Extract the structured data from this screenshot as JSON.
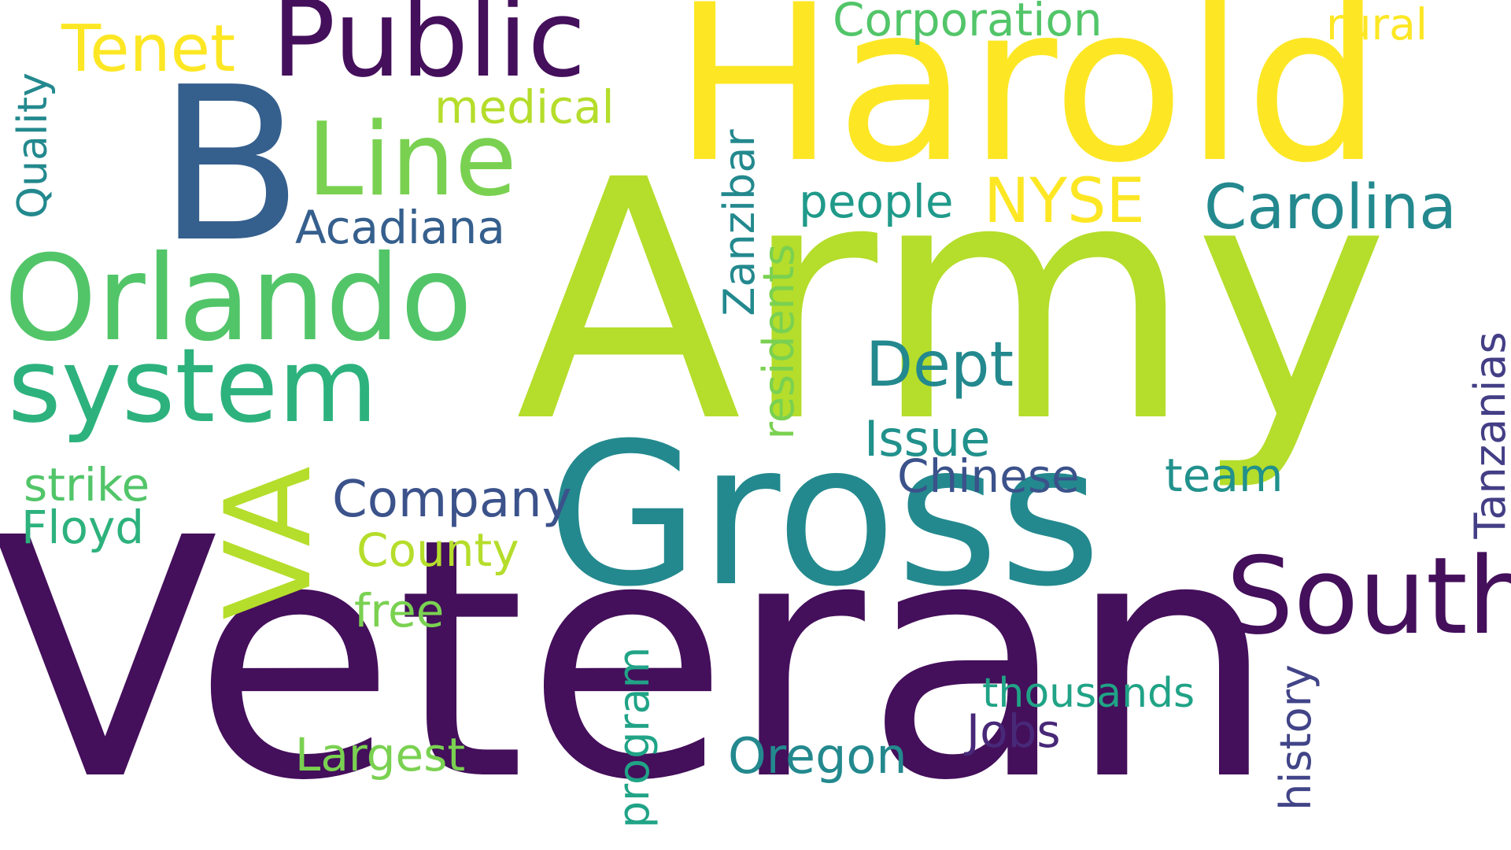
{
  "words": [
    {
      "text": "Veteran",
      "color": "#440f5b"
    },
    {
      "text": "Army",
      "color": "#b5dd2b"
    },
    {
      "text": "Harold",
      "color": "#fde725"
    },
    {
      "text": "Gross",
      "color": "#23898e"
    },
    {
      "text": "B",
      "color": "#355f8d"
    },
    {
      "text": "Public",
      "color": "#440f5b"
    },
    {
      "text": "Line",
      "color": "#7ad151"
    },
    {
      "text": "Orlando",
      "color": "#52c569"
    },
    {
      "text": "system",
      "color": "#2db27d"
    },
    {
      "text": "VA",
      "color": "#b5dd2b"
    },
    {
      "text": "South",
      "color": "#440f5b"
    },
    {
      "text": "Carolina",
      "color": "#23898e"
    },
    {
      "text": "Tenet",
      "color": "#fde725"
    },
    {
      "text": "Corporation",
      "color": "#52c569"
    },
    {
      "text": "rural",
      "color": "#fde725"
    },
    {
      "text": "medical",
      "color": "#b5dd2b"
    },
    {
      "text": "NYSE",
      "color": "#fde725"
    },
    {
      "text": "people",
      "color": "#1f9a8a"
    },
    {
      "text": "Acadiana",
      "color": "#355f8d"
    },
    {
      "text": "Dept",
      "color": "#23898e"
    },
    {
      "text": "Issue",
      "color": "#21918c"
    },
    {
      "text": "Chinese",
      "color": "#3b528b"
    },
    {
      "text": "team",
      "color": "#21918c"
    },
    {
      "text": "Company",
      "color": "#3b528b"
    },
    {
      "text": "County",
      "color": "#b5dd2b"
    },
    {
      "text": "free",
      "color": "#7ad151"
    },
    {
      "text": "strike",
      "color": "#52c569"
    },
    {
      "text": "Floyd",
      "color": "#2db27d"
    },
    {
      "text": "Largest",
      "color": "#7ad151"
    },
    {
      "text": "Oregon",
      "color": "#23898e"
    },
    {
      "text": "thousands",
      "color": "#20a386"
    },
    {
      "text": "Jobs",
      "color": "#482878"
    },
    {
      "text": "Quality",
      "color": "#23898e"
    },
    {
      "text": "Zanzibar",
      "color": "#23898e"
    },
    {
      "text": "residents",
      "color": "#7ad151"
    },
    {
      "text": "program",
      "color": "#20a386"
    },
    {
      "text": "history",
      "color": "#414487"
    },
    {
      "text": "Tanzanias",
      "color": "#433e85"
    }
  ]
}
